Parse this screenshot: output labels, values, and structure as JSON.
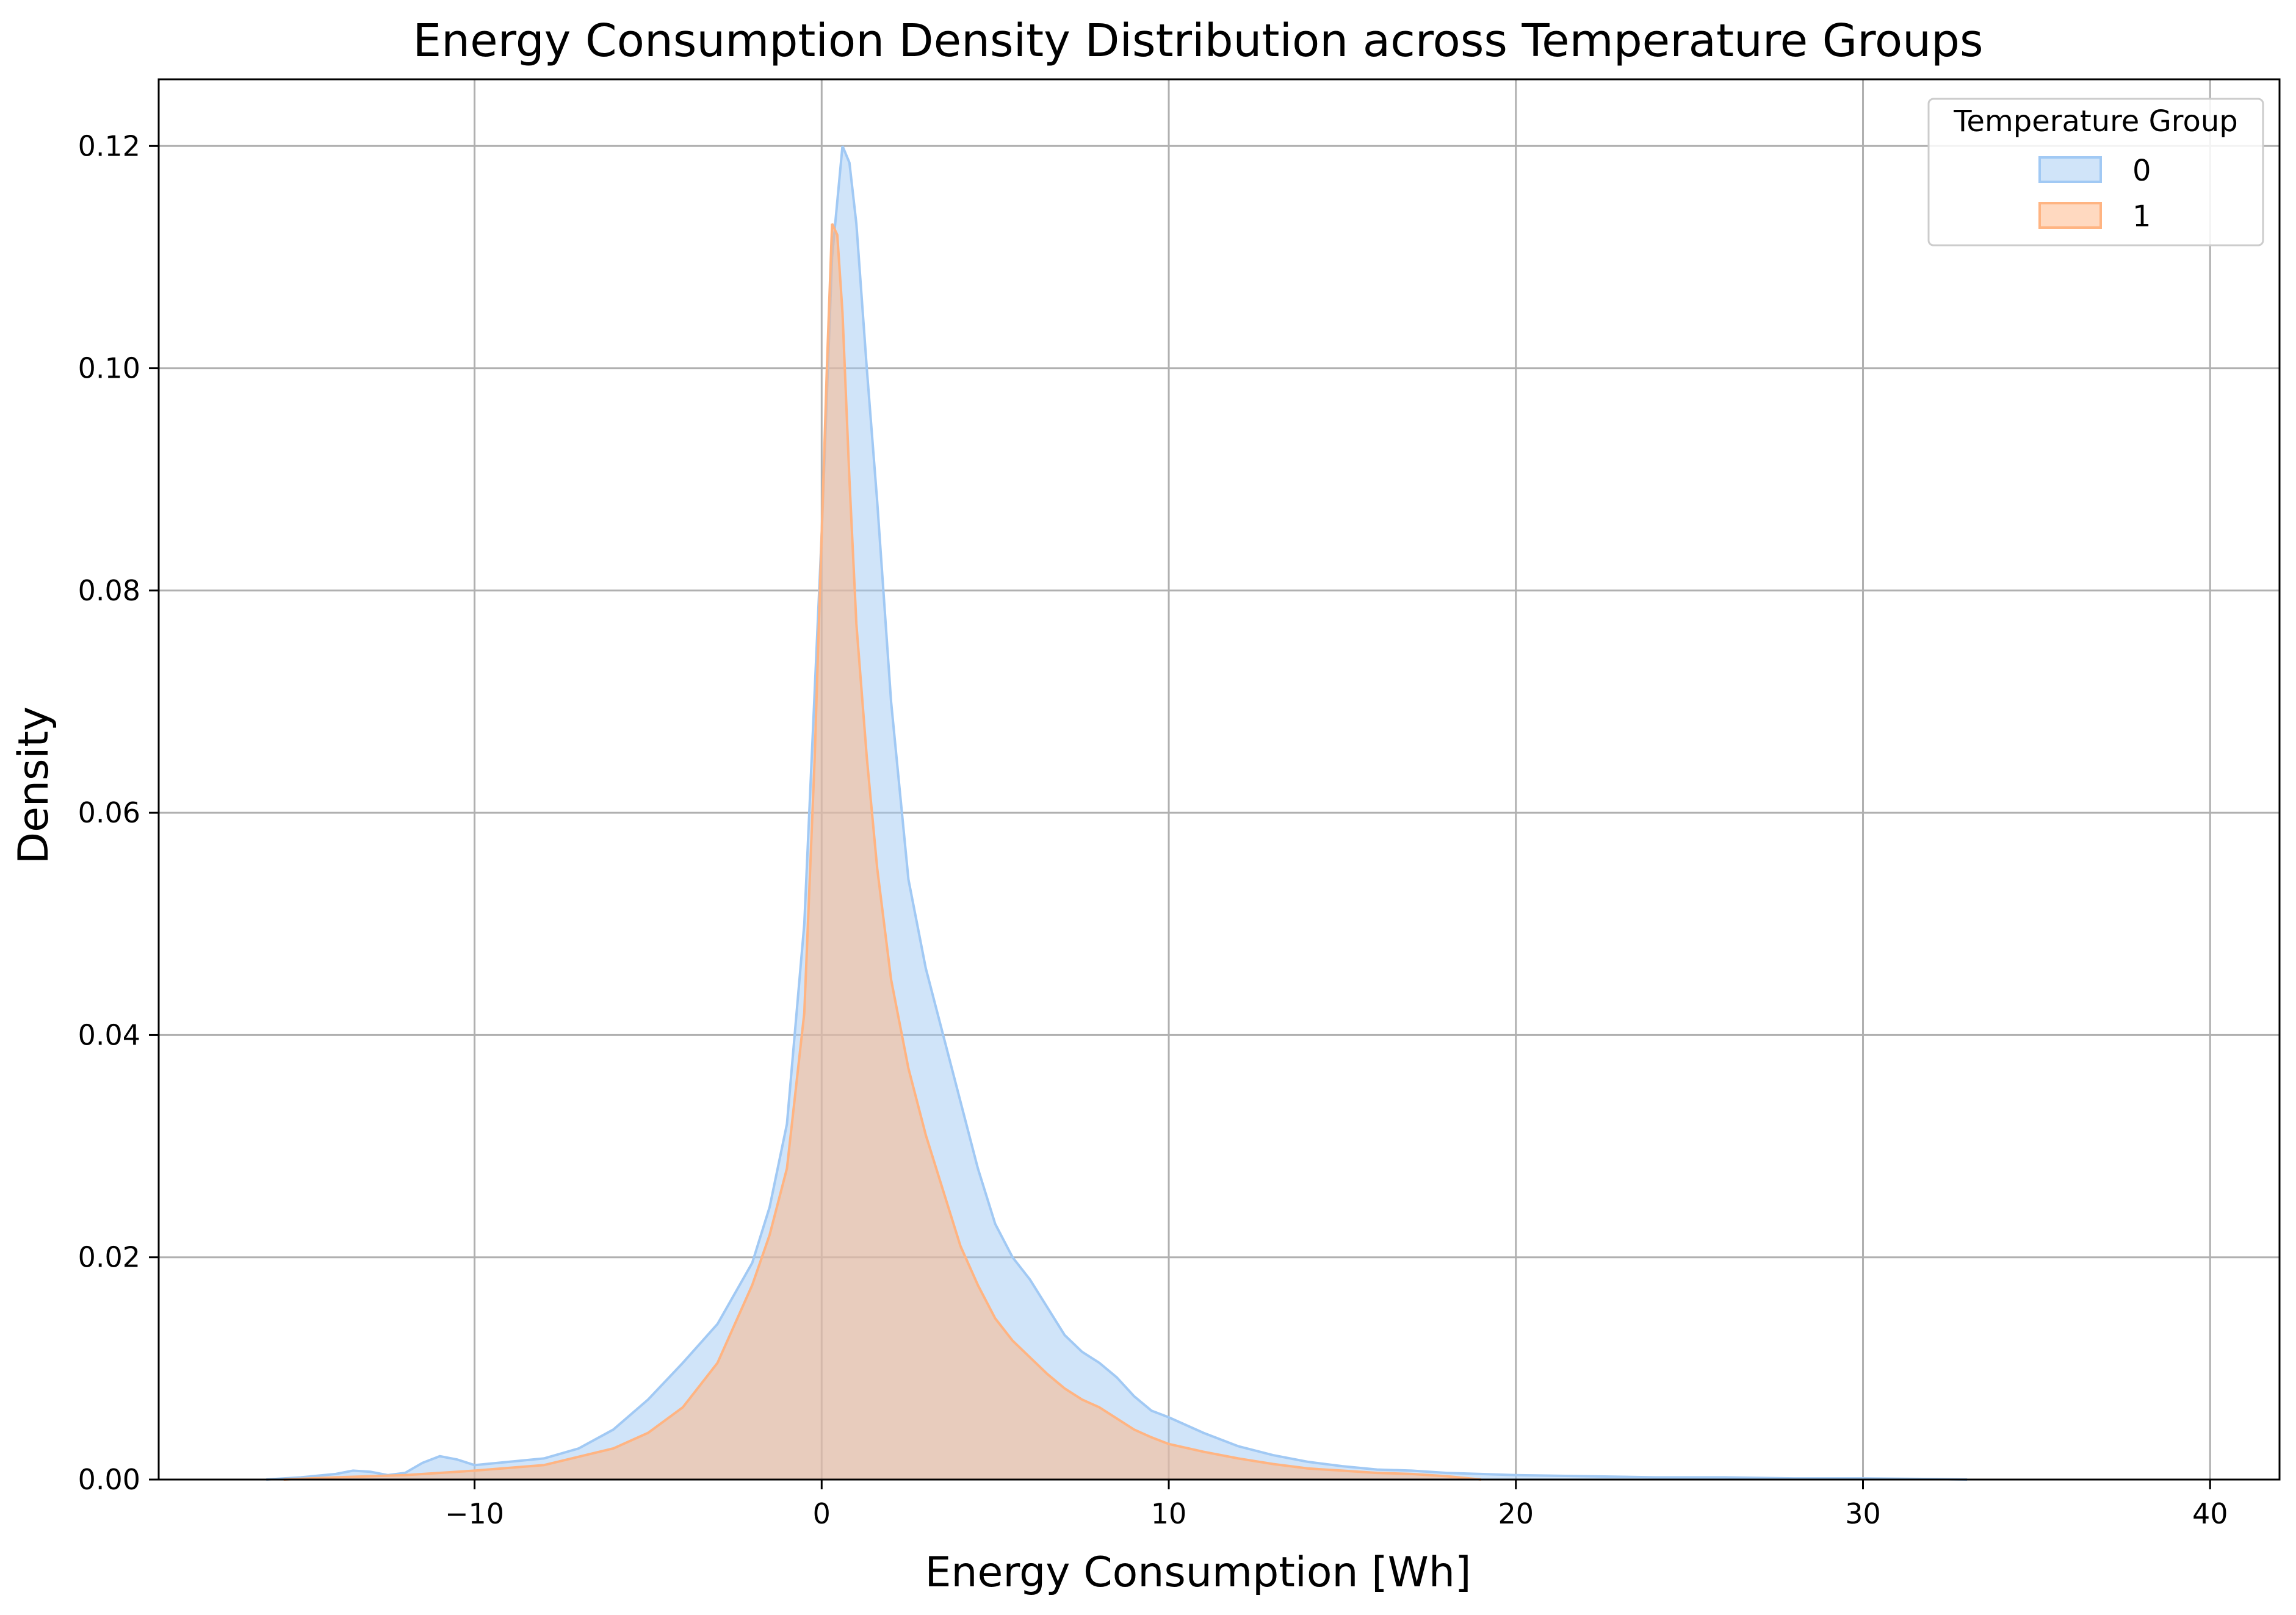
{
  "chart_data": {
    "type": "area",
    "title": "Energy Consumption Density Distribution across Temperature Groups",
    "xlabel": "Energy Consumption [Wh]",
    "ylabel": "Density",
    "xlim": [
      -19.1,
      42.0
    ],
    "ylim": [
      0.0,
      0.126
    ],
    "grid": true,
    "xticks": [
      -10,
      0,
      10,
      20,
      30,
      40
    ],
    "xtick_labels": [
      "−10",
      "0",
      "10",
      "20",
      "30",
      "40"
    ],
    "yticks": [
      0.0,
      0.02,
      0.04,
      0.06,
      0.08,
      0.1,
      0.12
    ],
    "ytick_labels": [
      "0.00",
      "0.02",
      "0.04",
      "0.06",
      "0.08",
      "0.10",
      "0.12"
    ],
    "legend": {
      "title": "Temperature Group",
      "position": "top-right"
    },
    "series": [
      {
        "name": "0",
        "fill": "#a1c9f4",
        "stroke": "#a1c9f4",
        "x": [
          -16,
          -15,
          -14,
          -13.5,
          -13,
          -12.5,
          -12,
          -11.5,
          -11,
          -10.5,
          -10,
          -9,
          -8,
          -7,
          -6,
          -5,
          -4,
          -3,
          -2,
          -1.5,
          -1,
          -0.5,
          0,
          0.3,
          0.6,
          0.8,
          1.0,
          1.3,
          1.6,
          2.0,
          2.5,
          3.0,
          3.5,
          4,
          4.5,
          5,
          5.5,
          6,
          6.5,
          7,
          7.5,
          8,
          8.5,
          9,
          9.5,
          10,
          11,
          12,
          13,
          14,
          15,
          16,
          17,
          18,
          19,
          20,
          22,
          24,
          26,
          28,
          30,
          32,
          33
        ],
        "y": [
          0.0,
          0.0002,
          0.0005,
          0.0008,
          0.0007,
          0.0004,
          0.0006,
          0.0015,
          0.0021,
          0.0018,
          0.0013,
          0.0016,
          0.0019,
          0.0028,
          0.0045,
          0.0072,
          0.0105,
          0.014,
          0.0195,
          0.0245,
          0.032,
          0.05,
          0.085,
          0.11,
          0.12,
          0.1185,
          0.113,
          0.1,
          0.088,
          0.07,
          0.054,
          0.046,
          0.04,
          0.034,
          0.028,
          0.023,
          0.02,
          0.018,
          0.0155,
          0.013,
          0.0115,
          0.0105,
          0.0092,
          0.0075,
          0.0062,
          0.0056,
          0.0042,
          0.003,
          0.0022,
          0.0016,
          0.0012,
          0.0009,
          0.0008,
          0.0006,
          0.0005,
          0.0004,
          0.0003,
          0.0002,
          0.0002,
          0.0001,
          0.0001,
          5e-05,
          0.0
        ]
      },
      {
        "name": "1",
        "fill": "#ffb482",
        "stroke": "#ffb482",
        "x": [
          -15.5,
          -14,
          -12,
          -10,
          -8,
          -6,
          -5,
          -4,
          -3,
          -2,
          -1.5,
          -1,
          -0.5,
          -0.2,
          0,
          0.15,
          0.3,
          0.45,
          0.6,
          0.8,
          1.0,
          1.3,
          1.6,
          2.0,
          2.5,
          3.0,
          3.5,
          4,
          4.5,
          5,
          5.5,
          6,
          6.5,
          7,
          7.5,
          8,
          8.5,
          9,
          9.5,
          10,
          11,
          12,
          13,
          14,
          15,
          16,
          17,
          18,
          19
        ],
        "y": [
          0.0,
          0.0002,
          0.0004,
          0.0008,
          0.0013,
          0.0028,
          0.0042,
          0.0065,
          0.0105,
          0.0175,
          0.022,
          0.028,
          0.042,
          0.065,
          0.085,
          0.1,
          0.113,
          0.112,
          0.105,
          0.09,
          0.077,
          0.065,
          0.055,
          0.045,
          0.037,
          0.031,
          0.026,
          0.021,
          0.0175,
          0.0145,
          0.0125,
          0.011,
          0.0095,
          0.0082,
          0.0072,
          0.0065,
          0.0055,
          0.0045,
          0.0038,
          0.0032,
          0.0025,
          0.0019,
          0.0014,
          0.001,
          0.0008,
          0.0006,
          0.0005,
          0.0003,
          0.0
        ]
      }
    ]
  }
}
